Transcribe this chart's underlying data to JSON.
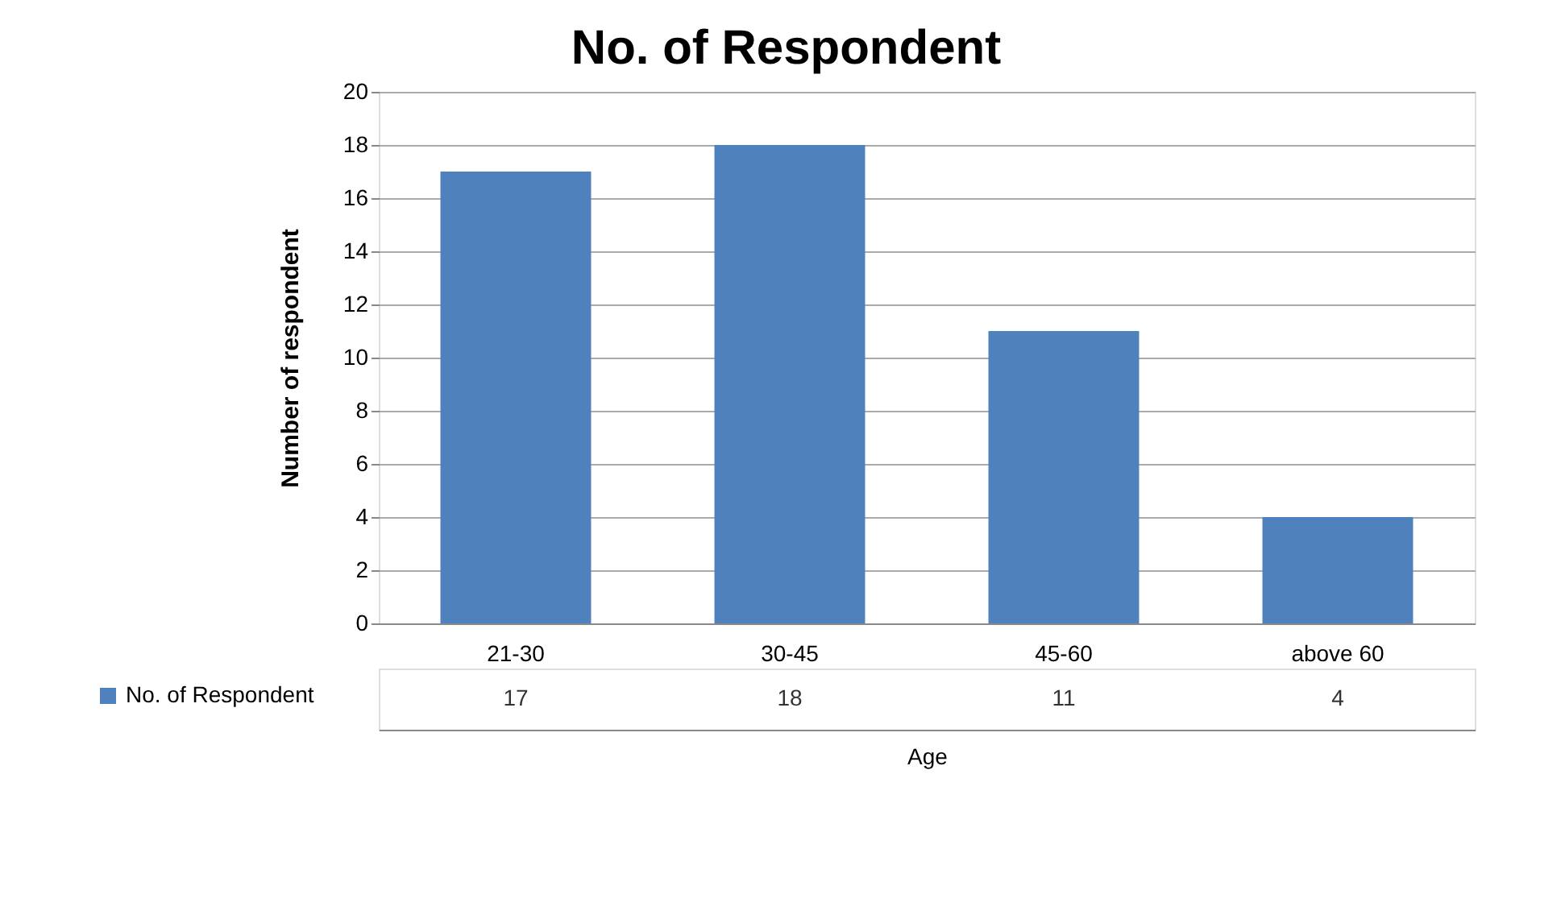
{
  "chart_data": {
    "type": "bar",
    "title": "No. of Respondent",
    "xlabel": "Age",
    "ylabel": "Number of respondent",
    "categories": [
      "21-30",
      "30-45",
      "45-60",
      "above 60"
    ],
    "series": [
      {
        "name": "No. of Respondent",
        "color": "#4f81bd",
        "values": [
          17,
          18,
          11,
          4
        ]
      }
    ],
    "ylim": [
      0,
      20
    ],
    "yticks": [
      0,
      2,
      4,
      6,
      8,
      10,
      12,
      14,
      16,
      18,
      20
    ],
    "grid": "y",
    "legend": "bottom",
    "data_labels": true
  }
}
